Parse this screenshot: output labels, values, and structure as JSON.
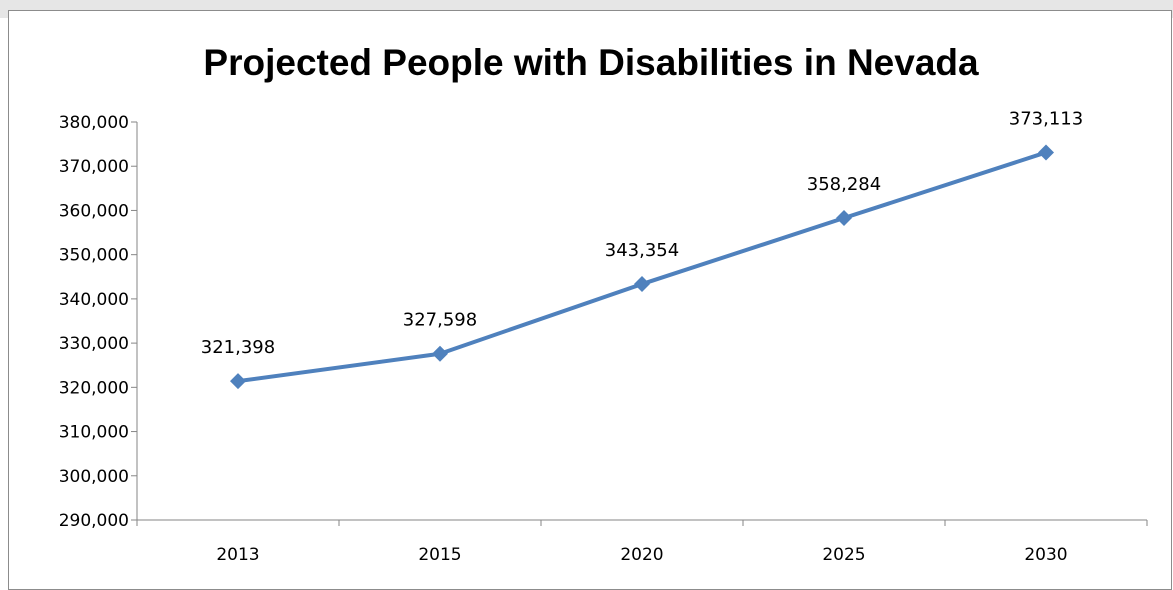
{
  "chart_data": {
    "type": "line",
    "title": "Projected People with Disabilities in Nevada",
    "xlabel": "",
    "ylabel": "",
    "categories": [
      "2013",
      "2015",
      "2020",
      "2025",
      "2030"
    ],
    "series": [
      {
        "values": [
          321398,
          327598,
          343354,
          358284,
          373113
        ],
        "data_labels": [
          "321,398",
          "327,598",
          "343,354",
          "358,284",
          "373,113"
        ],
        "color": "#4f81bd",
        "marker": "diamond"
      }
    ],
    "ylim": [
      290000,
      380000
    ],
    "y_ticks": [
      {
        "value": 290000,
        "label": "290,000"
      },
      {
        "value": 300000,
        "label": "300,000"
      },
      {
        "value": 310000,
        "label": "310,000"
      },
      {
        "value": 320000,
        "label": "320,000"
      },
      {
        "value": 330000,
        "label": "330,000"
      },
      {
        "value": 340000,
        "label": "340,000"
      },
      {
        "value": 350000,
        "label": "350,000"
      },
      {
        "value": 360000,
        "label": "360,000"
      },
      {
        "value": 370000,
        "label": "370,000"
      },
      {
        "value": 380000,
        "label": "380,000"
      }
    ],
    "grid": false,
    "legend": "none"
  }
}
